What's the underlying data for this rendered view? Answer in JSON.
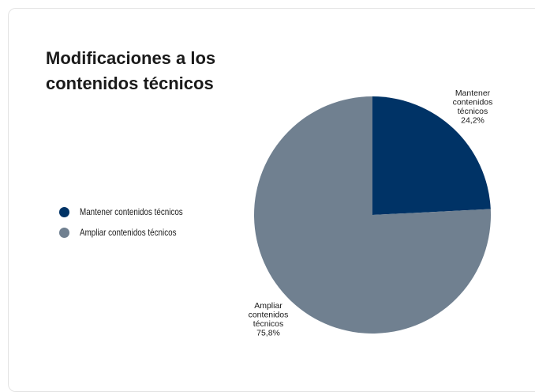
{
  "chart_data": {
    "type": "pie",
    "title": "Modificaciones a los contenidos técnicos",
    "slices": [
      {
        "label": "Mantener contenidos técnicos",
        "value": 24.2,
        "value_label": "24,2%",
        "color": "#003366"
      },
      {
        "label": "Ampliar contenidos técnicos",
        "value": 75.8,
        "value_label": "75,8%",
        "color": "#708090"
      }
    ],
    "legend_position": "left"
  }
}
